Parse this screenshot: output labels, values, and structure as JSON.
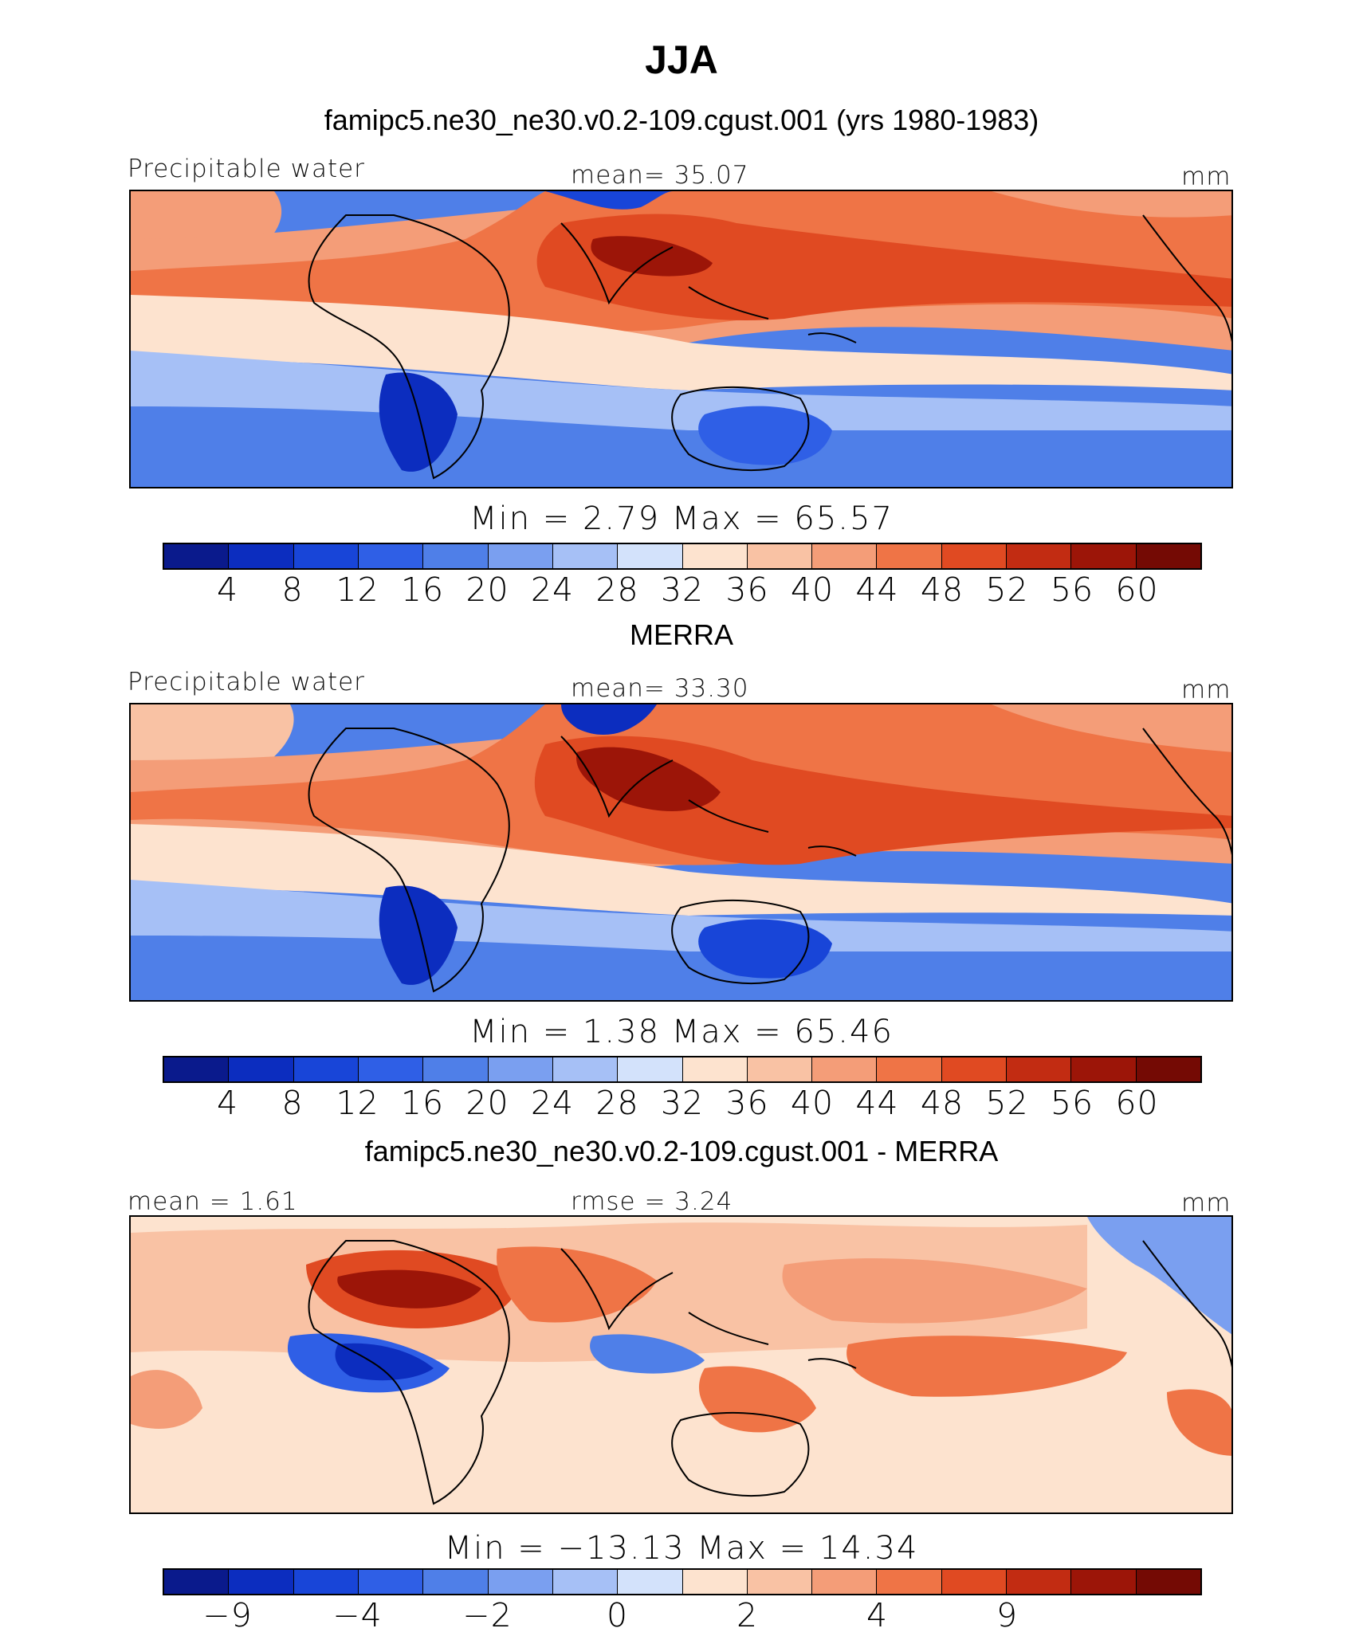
{
  "title": "JJA",
  "panels": [
    {
      "subtitle": "famipc5.ne30_ne30.v0.2-109.cgust.001 (yrs 1980-1983)",
      "left_label": "Precipitable water",
      "center_label": "mean=   35.07",
      "right_label": "mm",
      "minmax": "Min =    2.79 Max =   65.57"
    },
    {
      "subtitle": "MERRA",
      "left_label": "Precipitable water",
      "center_label": "mean=   33.30",
      "right_label": "mm",
      "minmax": "Min =    1.38 Max =   65.46"
    },
    {
      "subtitle": "famipc5.ne30_ne30.v0.2-109.cgust.001 - MERRA",
      "left_label": "mean =   1.61",
      "center_label": "rmse =   3.24",
      "right_label": "mm",
      "minmax": "Min = −13.13 Max =  14.34"
    }
  ],
  "chart_data": [
    {
      "type": "heatmap",
      "title": "famipc5.ne30_ne30.v0.2-109.cgust.001 (yrs 1980-1983)",
      "variable": "Precipitable water",
      "units": "mm",
      "season": "JJA",
      "mean": 35.07,
      "min": 2.79,
      "max": 65.57,
      "colorbar_ticks": [
        "4",
        "8",
        "12",
        "16",
        "20",
        "24",
        "28",
        "32",
        "36",
        "40",
        "44",
        "48",
        "52",
        "56",
        "60"
      ],
      "colors": [
        "#0a1a8c",
        "#0c2dbf",
        "#1845d8",
        "#2f5fe6",
        "#4f7fe8",
        "#7a9ff0",
        "#a6c0f6",
        "#d3e2fb",
        "#fde3cf",
        "#f9c2a4",
        "#f49d78",
        "#ef7446",
        "#e04a22",
        "#c22c12",
        "#9c1508",
        "#740a04"
      ]
    },
    {
      "type": "heatmap",
      "title": "MERRA",
      "variable": "Precipitable water",
      "units": "mm",
      "season": "JJA",
      "mean": 33.3,
      "min": 1.38,
      "max": 65.46,
      "colorbar_ticks": [
        "4",
        "8",
        "12",
        "16",
        "20",
        "24",
        "28",
        "32",
        "36",
        "40",
        "44",
        "48",
        "52",
        "56",
        "60"
      ],
      "colors": [
        "#0a1a8c",
        "#0c2dbf",
        "#1845d8",
        "#2f5fe6",
        "#4f7fe8",
        "#7a9ff0",
        "#a6c0f6",
        "#d3e2fb",
        "#fde3cf",
        "#f9c2a4",
        "#f49d78",
        "#ef7446",
        "#e04a22",
        "#c22c12",
        "#9c1508",
        "#740a04"
      ]
    },
    {
      "type": "heatmap",
      "title": "famipc5.ne30_ne30.v0.2-109.cgust.001 - MERRA",
      "units": "mm",
      "mean": 1.61,
      "rmse": 3.24,
      "min": -13.13,
      "max": 14.34,
      "colorbar_ticks": [
        "−9",
        "",
        "−4",
        "",
        "−2",
        "",
        "0",
        "",
        "2",
        "",
        "4",
        "",
        "9"
      ],
      "tick_positions": [
        1,
        3,
        5,
        7,
        9,
        11,
        13
      ],
      "tick_labels": [
        "−9",
        "−4",
        "−2",
        "0",
        "2",
        "4",
        "9"
      ],
      "colors": [
        "#0a1a8c",
        "#0c2dbf",
        "#1845d8",
        "#2f5fe6",
        "#4f7fe8",
        "#7a9ff0",
        "#a6c0f6",
        "#d3e2fb",
        "#fde3cf",
        "#f9c2a4",
        "#f49d78",
        "#ef7446",
        "#e04a22",
        "#c22c12",
        "#9c1508",
        "#740a04"
      ]
    }
  ]
}
